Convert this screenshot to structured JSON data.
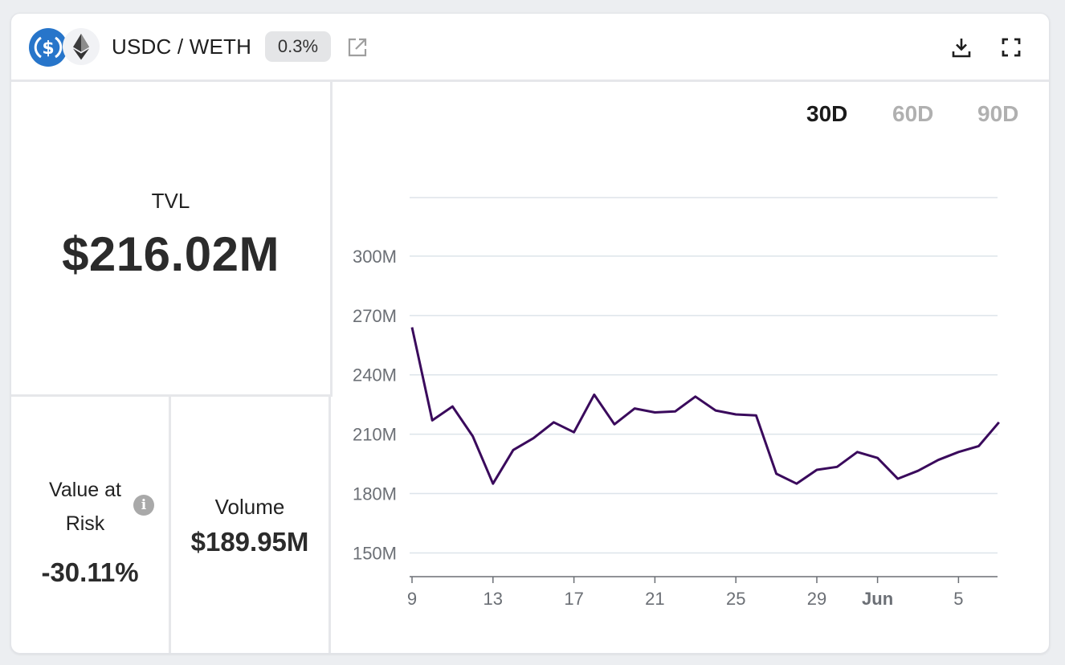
{
  "header": {
    "pair_title": "USDC / WETH",
    "fee_badge": "0.3%",
    "icons": [
      "usdc-icon",
      "eth-icon",
      "external-link-icon",
      "download-icon",
      "fullscreen-icon"
    ]
  },
  "tvl": {
    "label": "TVL",
    "value": "$216.02M"
  },
  "value_at_risk": {
    "label": "Value at Risk",
    "value": "-30.11%",
    "info_icon": "i"
  },
  "volume": {
    "label": "Volume",
    "value": "$189.95M"
  },
  "range_tabs": [
    {
      "label": "30D",
      "active": true
    },
    {
      "label": "60D",
      "active": false
    },
    {
      "label": "90D",
      "active": false
    }
  ],
  "colors": {
    "line": "#3a0a5c",
    "usdc": "#2775ca",
    "grid": "#dde4ea"
  },
  "chart_data": {
    "type": "line",
    "ylim": [
      138,
      330
    ],
    "y_ticks": [
      150,
      180,
      210,
      240,
      270,
      300
    ],
    "y_tick_labels": [
      "150M",
      "180M",
      "210M",
      "240M",
      "270M",
      "300M"
    ],
    "x_ticks": [
      {
        "day": 9,
        "label": "9"
      },
      {
        "day": 13,
        "label": "13"
      },
      {
        "day": 17,
        "label": "17"
      },
      {
        "day": 21,
        "label": "21"
      },
      {
        "day": 25,
        "label": "25"
      },
      {
        "day": 29,
        "label": "29"
      },
      {
        "day": 32,
        "label": "Jun",
        "bold": true
      },
      {
        "day": 36,
        "label": "5"
      }
    ],
    "xlim": [
      9,
      37
    ],
    "series": [
      {
        "values_m": [
          [
            9,
            264
          ],
          [
            10,
            217
          ],
          [
            11,
            224
          ],
          [
            12,
            209
          ],
          [
            13,
            185
          ],
          [
            14,
            202
          ],
          [
            15,
            208
          ],
          [
            16,
            216
          ],
          [
            17,
            211
          ],
          [
            18,
            230
          ],
          [
            19,
            215
          ],
          [
            20,
            223
          ],
          [
            21,
            221
          ],
          [
            22,
            221.5
          ],
          [
            23,
            229
          ],
          [
            24,
            222
          ],
          [
            25,
            220
          ],
          [
            26,
            219.5
          ],
          [
            27,
            190
          ],
          [
            28,
            185
          ],
          [
            29,
            192
          ],
          [
            30,
            193.5
          ],
          [
            31,
            201
          ],
          [
            32,
            198
          ],
          [
            33,
            187.5
          ],
          [
            34,
            191.5
          ],
          [
            35,
            197
          ],
          [
            36,
            201
          ],
          [
            37,
            204
          ],
          [
            38,
            216
          ]
        ]
      }
    ]
  }
}
